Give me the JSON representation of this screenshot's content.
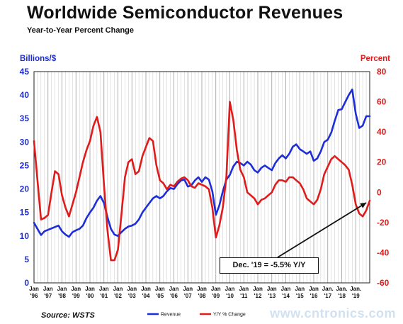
{
  "chart_data": {
    "type": "line",
    "title": "Worldwide Semiconductor Revenues",
    "subtitle": "Year-to-Year Percent Change",
    "y_left_label": "Billions/$",
    "y_right_label": "Percent",
    "y_left_range": [
      0,
      45
    ],
    "y_left_ticks": [
      "0",
      "5",
      "10",
      "15",
      "20",
      "25",
      "30",
      "35",
      "40",
      "45"
    ],
    "y_right_range": [
      -60,
      80
    ],
    "y_right_ticks": [
      "-60",
      "-40",
      "-20",
      "0",
      "20",
      "40",
      "60",
      "80"
    ],
    "grid": "vertical",
    "x_ticks": [
      {
        "top": "Jan",
        "bottom": "'96"
      },
      {
        "top": "Jan",
        "bottom": "'97"
      },
      {
        "top": "Jan",
        "bottom": "'98"
      },
      {
        "top": "Jan",
        "bottom": "'99"
      },
      {
        "top": "Jan",
        "bottom": "'00"
      },
      {
        "top": "Jan",
        "bottom": "'01"
      },
      {
        "top": "Jan",
        "bottom": "'02"
      },
      {
        "top": "Jan",
        "bottom": "'03"
      },
      {
        "top": "Jan",
        "bottom": "'04"
      },
      {
        "top": "Jan",
        "bottom": "'05"
      },
      {
        "top": "Jan",
        "bottom": "'06"
      },
      {
        "top": "Jan",
        "bottom": "'07"
      },
      {
        "top": "Jan",
        "bottom": "'08"
      },
      {
        "top": "Jan",
        "bottom": "'09"
      },
      {
        "top": "Jan",
        "bottom": "'10"
      },
      {
        "top": "Jan",
        "bottom": "'11"
      },
      {
        "top": "Jan",
        "bottom": "'12"
      },
      {
        "top": "Jan",
        "bottom": "'13"
      },
      {
        "top": "Jan",
        "bottom": "'14"
      },
      {
        "top": "Jan",
        "bottom": "'15"
      },
      {
        "top": "Jan",
        "bottom": "'16"
      },
      {
        "top": "Jan.",
        "bottom": "'17"
      },
      {
        "top": "Jan.",
        "bottom": "'18"
      },
      {
        "top": "Jan.",
        "bottom": "'19"
      }
    ],
    "x_start": 1996.0,
    "x_end": 2020.0,
    "series": [
      {
        "name": "Revenue",
        "axis": "left",
        "color": "#1d2ed8",
        "points": [
          [
            1996.0,
            12.8
          ],
          [
            1996.25,
            11.5
          ],
          [
            1996.5,
            10.2
          ],
          [
            1996.75,
            11.0
          ],
          [
            1997.0,
            11.3
          ],
          [
            1997.25,
            11.6
          ],
          [
            1997.5,
            11.9
          ],
          [
            1997.75,
            12.2
          ],
          [
            1998.0,
            11.0
          ],
          [
            1998.25,
            10.3
          ],
          [
            1998.5,
            9.8
          ],
          [
            1998.75,
            10.8
          ],
          [
            1999.0,
            11.2
          ],
          [
            1999.25,
            11.5
          ],
          [
            1999.5,
            12.2
          ],
          [
            1999.75,
            13.8
          ],
          [
            2000.0,
            15.0
          ],
          [
            2000.25,
            16.0
          ],
          [
            2000.5,
            17.5
          ],
          [
            2000.75,
            18.5
          ],
          [
            2001.0,
            17.0
          ],
          [
            2001.25,
            14.0
          ],
          [
            2001.5,
            11.5
          ],
          [
            2001.75,
            10.3
          ],
          [
            2002.0,
            10.0
          ],
          [
            2002.25,
            10.8
          ],
          [
            2002.5,
            11.5
          ],
          [
            2002.75,
            12.0
          ],
          [
            2003.0,
            12.2
          ],
          [
            2003.25,
            12.6
          ],
          [
            2003.5,
            13.5
          ],
          [
            2003.75,
            15.0
          ],
          [
            2004.0,
            16.0
          ],
          [
            2004.25,
            17.0
          ],
          [
            2004.5,
            18.0
          ],
          [
            2004.75,
            18.5
          ],
          [
            2005.0,
            18.0
          ],
          [
            2005.25,
            18.5
          ],
          [
            2005.5,
            19.5
          ],
          [
            2005.75,
            20.2
          ],
          [
            2006.0,
            20.0
          ],
          [
            2006.25,
            21.0
          ],
          [
            2006.5,
            21.8
          ],
          [
            2006.75,
            22.0
          ],
          [
            2007.0,
            20.5
          ],
          [
            2007.25,
            20.8
          ],
          [
            2007.5,
            21.8
          ],
          [
            2007.75,
            22.5
          ],
          [
            2008.0,
            21.5
          ],
          [
            2008.25,
            22.5
          ],
          [
            2008.5,
            22.0
          ],
          [
            2008.75,
            19.5
          ],
          [
            2009.0,
            14.5
          ],
          [
            2009.25,
            16.5
          ],
          [
            2009.5,
            19.5
          ],
          [
            2009.75,
            22.0
          ],
          [
            2010.0,
            23.0
          ],
          [
            2010.25,
            24.8
          ],
          [
            2010.5,
            25.8
          ],
          [
            2010.75,
            25.5
          ],
          [
            2011.0,
            25.0
          ],
          [
            2011.25,
            25.8
          ],
          [
            2011.5,
            25.2
          ],
          [
            2011.75,
            24.0
          ],
          [
            2012.0,
            23.5
          ],
          [
            2012.25,
            24.5
          ],
          [
            2012.5,
            25.0
          ],
          [
            2012.75,
            24.5
          ],
          [
            2013.0,
            24.0
          ],
          [
            2013.25,
            25.5
          ],
          [
            2013.5,
            26.5
          ],
          [
            2013.75,
            27.2
          ],
          [
            2014.0,
            26.5
          ],
          [
            2014.25,
            27.5
          ],
          [
            2014.5,
            29.0
          ],
          [
            2014.75,
            29.5
          ],
          [
            2015.0,
            28.5
          ],
          [
            2015.25,
            28.0
          ],
          [
            2015.5,
            27.5
          ],
          [
            2015.75,
            28.0
          ],
          [
            2016.0,
            26.0
          ],
          [
            2016.25,
            26.5
          ],
          [
            2016.5,
            28.0
          ],
          [
            2016.75,
            30.0
          ],
          [
            2017.0,
            30.5
          ],
          [
            2017.25,
            32.0
          ],
          [
            2017.5,
            34.5
          ],
          [
            2017.75,
            36.8
          ],
          [
            2018.0,
            37.0
          ],
          [
            2018.25,
            38.5
          ],
          [
            2018.5,
            40.0
          ],
          [
            2018.75,
            41.2
          ],
          [
            2019.0,
            36.0
          ],
          [
            2019.25,
            33.0
          ],
          [
            2019.5,
            33.5
          ],
          [
            2019.75,
            35.5
          ],
          [
            2020.0,
            35.5
          ]
        ]
      },
      {
        "name": "Y/Y % Change",
        "axis": "right",
        "color": "#e01b1b",
        "points": [
          [
            1996.0,
            34
          ],
          [
            1996.25,
            8
          ],
          [
            1996.5,
            -18
          ],
          [
            1996.75,
            -17
          ],
          [
            1997.0,
            -15
          ],
          [
            1997.25,
            0
          ],
          [
            1997.5,
            14
          ],
          [
            1997.75,
            12
          ],
          [
            1998.0,
            -2
          ],
          [
            1998.25,
            -10
          ],
          [
            1998.5,
            -16
          ],
          [
            1998.75,
            -8
          ],
          [
            1999.0,
            0
          ],
          [
            1999.25,
            10
          ],
          [
            1999.5,
            20
          ],
          [
            1999.75,
            28
          ],
          [
            2000.0,
            34
          ],
          [
            2000.25,
            44
          ],
          [
            2000.5,
            50
          ],
          [
            2000.75,
            40
          ],
          [
            2001.0,
            5
          ],
          [
            2001.25,
            -25
          ],
          [
            2001.5,
            -45
          ],
          [
            2001.75,
            -45
          ],
          [
            2002.0,
            -38
          ],
          [
            2002.25,
            -15
          ],
          [
            2002.5,
            10
          ],
          [
            2002.75,
            20
          ],
          [
            2003.0,
            22
          ],
          [
            2003.25,
            12
          ],
          [
            2003.5,
            14
          ],
          [
            2003.75,
            24
          ],
          [
            2004.0,
            30
          ],
          [
            2004.25,
            36
          ],
          [
            2004.5,
            34
          ],
          [
            2004.75,
            18
          ],
          [
            2005.0,
            8
          ],
          [
            2005.25,
            6
          ],
          [
            2005.5,
            2
          ],
          [
            2005.75,
            5
          ],
          [
            2006.0,
            4
          ],
          [
            2006.25,
            7
          ],
          [
            2006.5,
            9
          ],
          [
            2006.75,
            10
          ],
          [
            2007.0,
            8
          ],
          [
            2007.25,
            4
          ],
          [
            2007.5,
            3
          ],
          [
            2007.75,
            6
          ],
          [
            2008.0,
            5
          ],
          [
            2008.25,
            4
          ],
          [
            2008.5,
            2
          ],
          [
            2008.75,
            -10
          ],
          [
            2009.0,
            -30
          ],
          [
            2009.25,
            -22
          ],
          [
            2009.5,
            -10
          ],
          [
            2009.75,
            10
          ],
          [
            2010.0,
            60
          ],
          [
            2010.25,
            48
          ],
          [
            2010.5,
            28
          ],
          [
            2010.75,
            15
          ],
          [
            2011.0,
            10
          ],
          [
            2011.25,
            0
          ],
          [
            2011.5,
            -2
          ],
          [
            2011.75,
            -4
          ],
          [
            2012.0,
            -8
          ],
          [
            2012.25,
            -5
          ],
          [
            2012.5,
            -4
          ],
          [
            2012.75,
            -2
          ],
          [
            2013.0,
            0
          ],
          [
            2013.25,
            5
          ],
          [
            2013.5,
            8
          ],
          [
            2013.75,
            8
          ],
          [
            2014.0,
            7
          ],
          [
            2014.25,
            10
          ],
          [
            2014.5,
            10
          ],
          [
            2014.75,
            8
          ],
          [
            2015.0,
            6
          ],
          [
            2015.25,
            2
          ],
          [
            2015.5,
            -4
          ],
          [
            2015.75,
            -6
          ],
          [
            2016.0,
            -8
          ],
          [
            2016.25,
            -5
          ],
          [
            2016.5,
            2
          ],
          [
            2016.75,
            12
          ],
          [
            2017.0,
            17
          ],
          [
            2017.25,
            22
          ],
          [
            2017.5,
            24
          ],
          [
            2017.75,
            22
          ],
          [
            2018.0,
            20
          ],
          [
            2018.25,
            18
          ],
          [
            2018.5,
            15
          ],
          [
            2018.75,
            5
          ],
          [
            2019.0,
            -8
          ],
          [
            2019.25,
            -14
          ],
          [
            2019.5,
            -16
          ],
          [
            2019.75,
            -12
          ],
          [
            2020.0,
            -5.5
          ]
        ]
      }
    ],
    "legend": [
      {
        "label": "Revenue",
        "color": "#1d2ed8"
      },
      {
        "label": "Y/Y % Change",
        "color": "#e01b1b"
      }
    ],
    "legend_position": "bottom-center",
    "annotation": {
      "text": "Dec. '19 = -5.5% Y/Y",
      "target_x": 2019.95,
      "target_y_right": -5.5
    },
    "source": "Source: WSTS"
  },
  "watermark": "www.cntronics.com"
}
